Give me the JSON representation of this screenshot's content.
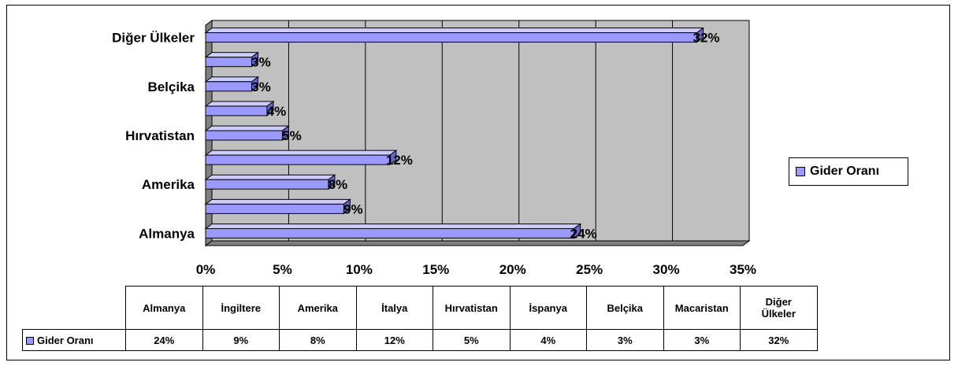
{
  "chart_data": {
    "type": "bar",
    "orientation": "horizontal",
    "style": "3d",
    "categories": [
      "Almanya",
      "İngiltere",
      "Amerika",
      "İtalya",
      "Hırvatistan",
      "İspanya",
      "Belçika",
      "Macaristan",
      "Diğer Ülkeler"
    ],
    "axis_labels_shown": [
      "Almanya",
      "Amerika",
      "Hırvatistan",
      "Belçika",
      "Diğer Ülkeler"
    ],
    "series": [
      {
        "name": "Gider Oranı",
        "values": [
          24,
          9,
          8,
          12,
          5,
          4,
          3,
          3,
          32
        ],
        "color": "#9999ff"
      }
    ],
    "value_labels": [
      "24%",
      "9%",
      "8%",
      "12%",
      "5%",
      "4%",
      "3%",
      "3%",
      "32%"
    ],
    "x_ticks": [
      "0%",
      "5%",
      "10%",
      "15%",
      "20%",
      "25%",
      "30%",
      "35%"
    ],
    "xlim": [
      0,
      35
    ],
    "grid": true,
    "plot_background": "#c0c0c0",
    "legend_position": "right"
  },
  "legend": {
    "label": "Gider Oranı"
  },
  "table": {
    "headers": [
      "Almanya",
      "İngiltere",
      "Amerika",
      "İtalya",
      "Hırvatistan",
      "İspanya",
      "Belçika",
      "Macaristan",
      "Diğer Ülkeler"
    ],
    "series_name": "Gider Oranı",
    "values": [
      "24%",
      "9%",
      "8%",
      "12%",
      "5%",
      "4%",
      "3%",
      "3%",
      "32%"
    ]
  }
}
